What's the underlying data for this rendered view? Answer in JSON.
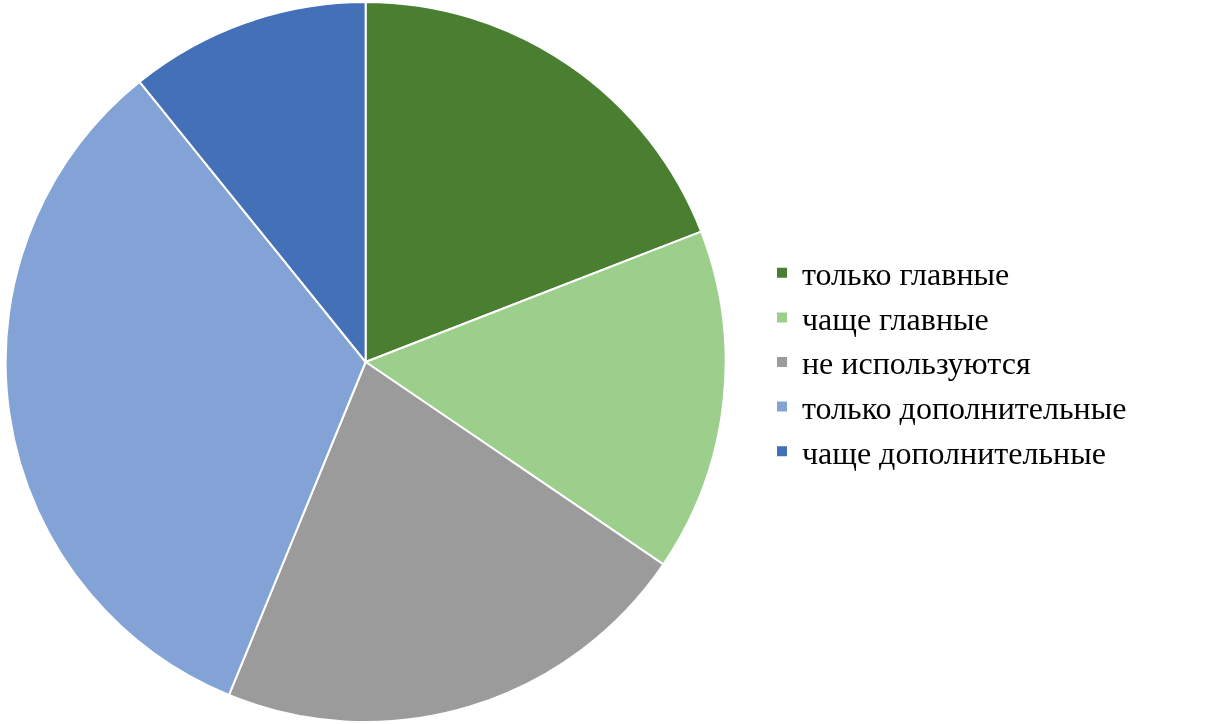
{
  "chart_data": {
    "type": "pie",
    "categories": [
      "только главные",
      "чаще главные",
      "не используются",
      "только дополнительные",
      "чаще дополнительные"
    ],
    "values": [
      19.1,
      15.4,
      21.7,
      33.0,
      10.8
    ],
    "colors": [
      "#4a7f32",
      "#9dcf8c",
      "#9b9b9b",
      "#83a3d6",
      "#4470b7"
    ],
    "legend": "right"
  }
}
